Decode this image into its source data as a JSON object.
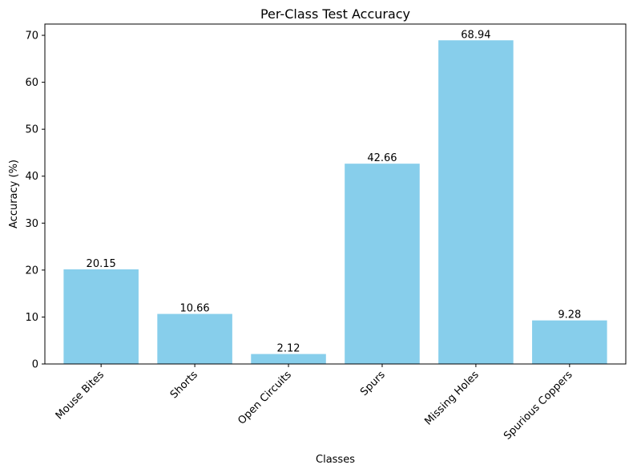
{
  "chart_data": {
    "type": "bar",
    "title": "Per-Class Test Accuracy",
    "xlabel": "Classes",
    "ylabel": "Accuracy (%)",
    "categories": [
      "Mouse Bites",
      "Shorts",
      "Open Circuits",
      "Spurs",
      "Missing Holes",
      "Spurious Coppers"
    ],
    "values": [
      20.15,
      10.66,
      2.12,
      42.66,
      68.94,
      9.28
    ],
    "value_labels": [
      "20.15",
      "10.66",
      "2.12",
      "42.66",
      "68.94",
      "9.28"
    ],
    "ylim": [
      0,
      72.4
    ],
    "yticks": [
      0,
      10,
      20,
      30,
      40,
      50,
      60,
      70
    ],
    "bar_color": "#87CEEB",
    "grid": false,
    "legend": "none"
  }
}
